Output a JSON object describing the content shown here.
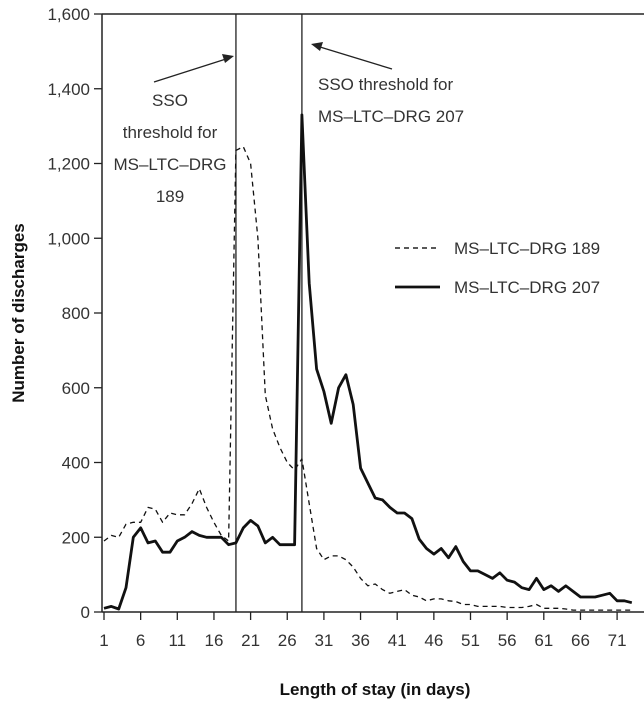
{
  "chart_data": {
    "type": "line",
    "xlabel": "Length of stay (in days)",
    "ylabel": "Number of discharges",
    "xlim": [
      1,
      73
    ],
    "ylim": [
      0,
      1600
    ],
    "x_ticks": [
      1,
      6,
      11,
      16,
      21,
      26,
      31,
      36,
      41,
      46,
      51,
      56,
      61,
      66,
      71
    ],
    "y_ticks": [
      0,
      200,
      400,
      600,
      800,
      1000,
      1200,
      1400,
      1600
    ],
    "y_tick_labels": [
      "0",
      "200",
      "400",
      "600",
      "800",
      "1,000",
      "1,200",
      "1,400",
      "1,600"
    ],
    "grid": false,
    "legend_position": "right",
    "x": [
      1,
      2,
      3,
      4,
      5,
      6,
      7,
      8,
      9,
      10,
      11,
      12,
      13,
      14,
      15,
      16,
      17,
      18,
      19,
      20,
      21,
      22,
      23,
      24,
      25,
      26,
      27,
      28,
      29,
      30,
      31,
      32,
      33,
      34,
      35,
      36,
      37,
      38,
      39,
      40,
      41,
      42,
      43,
      44,
      45,
      46,
      47,
      48,
      49,
      50,
      51,
      52,
      53,
      54,
      55,
      56,
      57,
      58,
      59,
      60,
      61,
      62,
      63,
      64,
      65,
      66,
      67,
      68,
      69,
      70,
      71,
      72,
      73
    ],
    "series": [
      {
        "name": "MS–LTC–DRG 189",
        "style": "dashed",
        "values": [
          190,
          205,
          200,
          235,
          240,
          240,
          280,
          275,
          240,
          265,
          260,
          260,
          290,
          330,
          280,
          240,
          205,
          190,
          1235,
          1245,
          1200,
          1000,
          580,
          490,
          440,
          400,
          380,
          410,
          290,
          170,
          140,
          150,
          150,
          140,
          120,
          90,
          70,
          75,
          60,
          50,
          55,
          60,
          45,
          40,
          30,
          35,
          35,
          30,
          28,
          20,
          20,
          15,
          15,
          15,
          15,
          12,
          12,
          12,
          15,
          20,
          10,
          10,
          10,
          8,
          5,
          5,
          5,
          5,
          5,
          5,
          5,
          5,
          5
        ]
      },
      {
        "name": "MS–LTC–DRG 207",
        "style": "solid",
        "values": [
          10,
          15,
          8,
          65,
          200,
          225,
          185,
          190,
          160,
          160,
          190,
          200,
          215,
          205,
          200,
          200,
          200,
          180,
          185,
          225,
          245,
          230,
          185,
          200,
          180,
          180,
          180,
          1330,
          880,
          650,
          590,
          505,
          600,
          635,
          555,
          385,
          345,
          305,
          300,
          280,
          265,
          265,
          250,
          195,
          170,
          155,
          170,
          145,
          175,
          135,
          110,
          110,
          100,
          90,
          105,
          85,
          80,
          65,
          60,
          90,
          60,
          70,
          55,
          70,
          55,
          40,
          40,
          40,
          45,
          50,
          30,
          30,
          25
        ]
      }
    ],
    "threshold_lines": [
      {
        "x": 19,
        "label": "SSO threshold for MS–LTC–DRG 189"
      },
      {
        "x": 28,
        "label": "SSO threshold for MS–LTC–DRG 207"
      }
    ]
  },
  "annotations": {
    "drg189_line1": "SSO",
    "drg189_line2": "threshold for",
    "drg189_line3": "MS–LTC–DRG",
    "drg189_line4": "189",
    "drg207_line1": "SSO threshold for",
    "drg207_line2": "MS–LTC–DRG 207"
  },
  "legend": {
    "item189": "MS–LTC–DRG 189",
    "item207": "MS–LTC–DRG 207"
  }
}
